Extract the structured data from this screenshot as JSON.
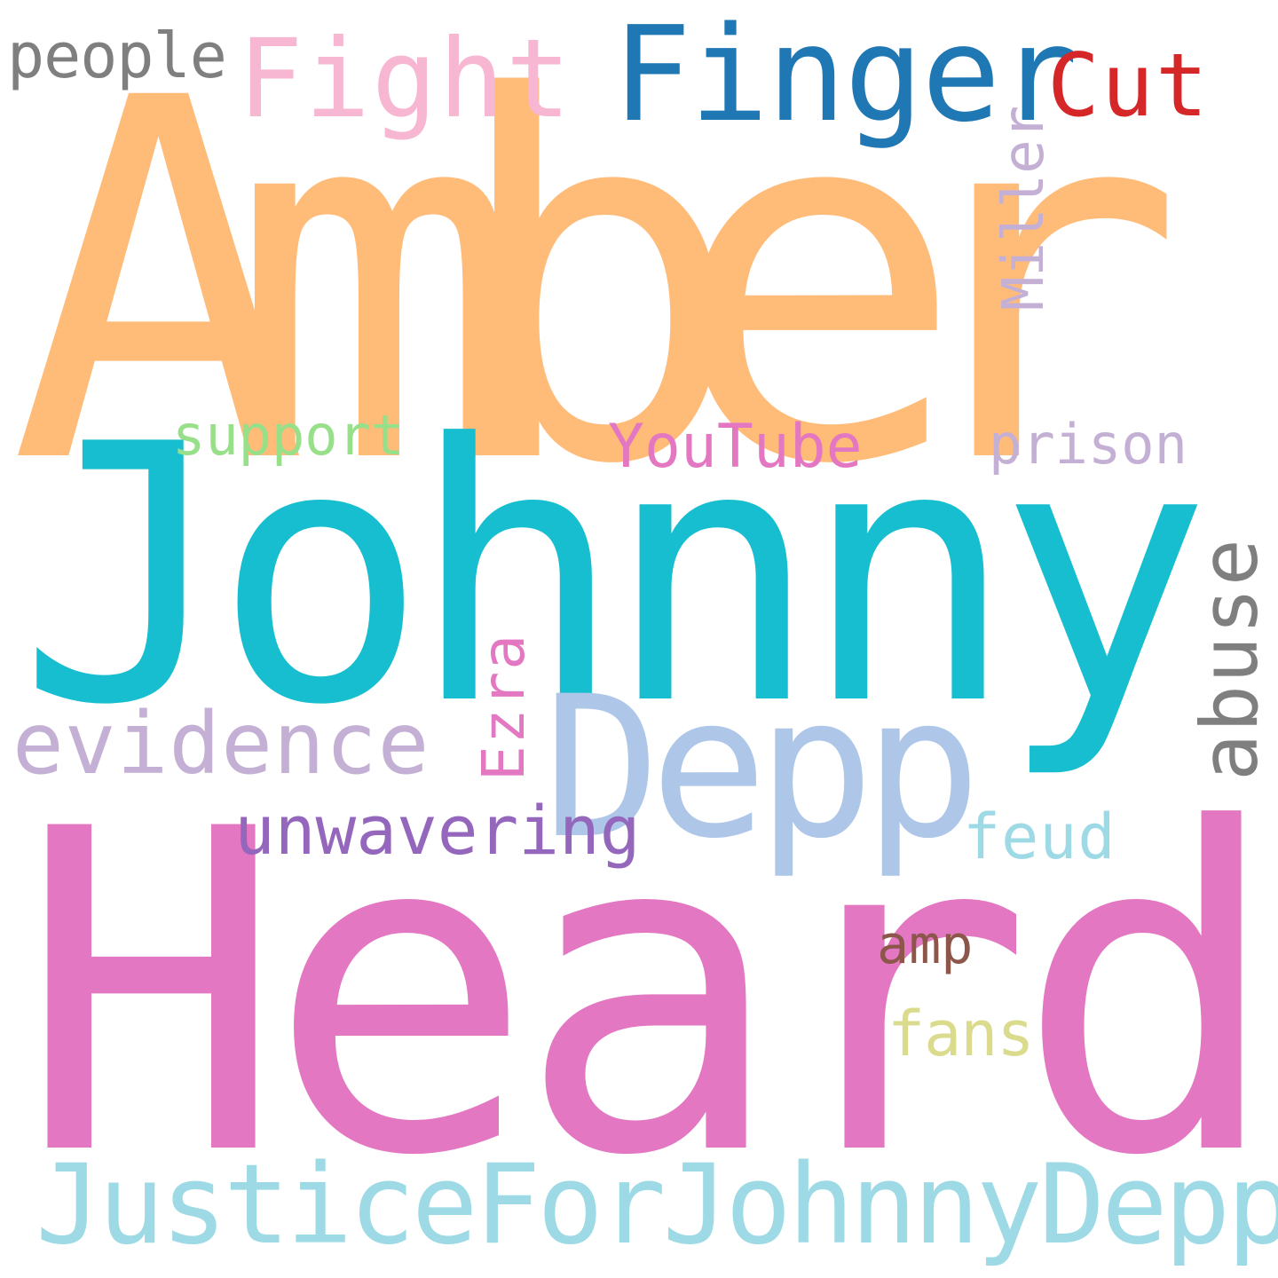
{
  "words": {
    "amber": {
      "text": "Amber",
      "color": "#ffbb78"
    },
    "johnny": {
      "text": "Johnny",
      "color": "#17becf"
    },
    "heard": {
      "text": "Heard",
      "color": "#e377c2"
    },
    "depp": {
      "text": "Depp",
      "color": "#aec7e8"
    },
    "justice": {
      "text": "JusticeForJohnnyDepp",
      "color": "#9edae5"
    },
    "finger": {
      "text": "Finger",
      "color": "#1f77b4"
    },
    "fight": {
      "text": "Fight",
      "color": "#f7b6d2"
    },
    "cut": {
      "text": "Cut",
      "color": "#d62728"
    },
    "people": {
      "text": "people",
      "color": "#7f7f7f"
    },
    "miller": {
      "text": "Miller",
      "color": "#c5b0d5"
    },
    "support": {
      "text": "support",
      "color": "#98df8a"
    },
    "youtube": {
      "text": "YouTube",
      "color": "#e377c2"
    },
    "prison": {
      "text": "prison",
      "color": "#c5b0d5"
    },
    "abuse": {
      "text": "abuse",
      "color": "#7f7f7f"
    },
    "evidence": {
      "text": "evidence",
      "color": "#c5b0d5"
    },
    "ezra": {
      "text": "Ezra",
      "color": "#e377c2"
    },
    "unwavering": {
      "text": "unwavering",
      "color": "#9467bd"
    },
    "feud": {
      "text": "feud",
      "color": "#9edae5"
    },
    "amp": {
      "text": "amp",
      "color": "#8c564b"
    },
    "fans": {
      "text": "fans",
      "color": "#dbdb8d"
    }
  }
}
